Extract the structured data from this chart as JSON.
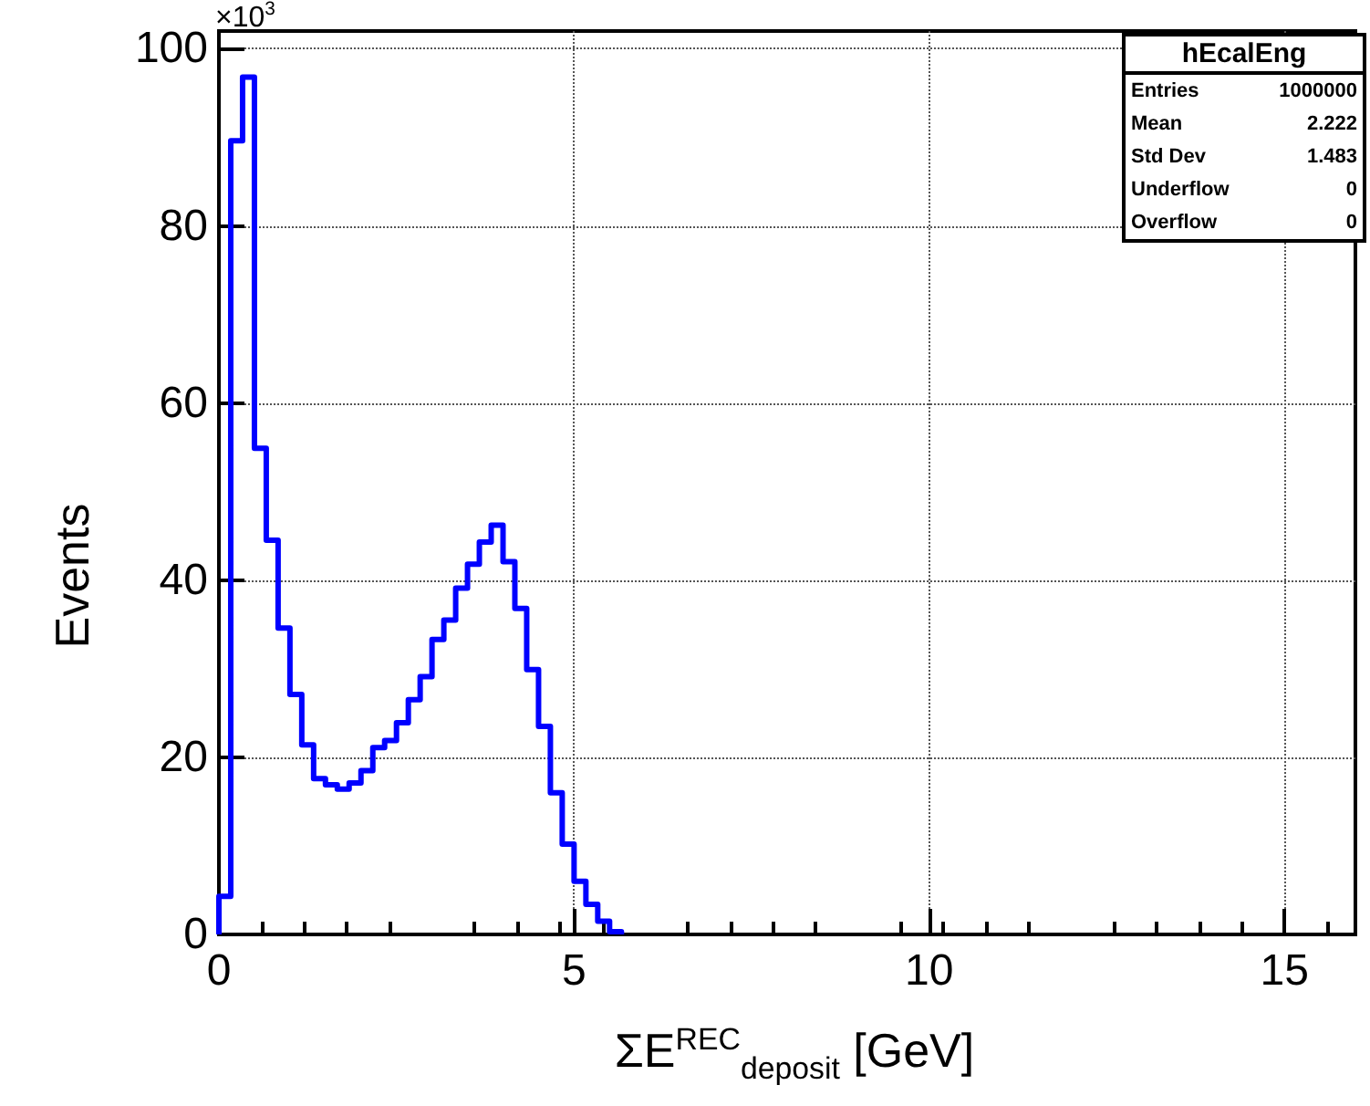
{
  "chart_data": {
    "type": "histogram",
    "xlabel": "ΣE$^{REC}$$_{deposit}$ [GeV]",
    "ylabel": "Events",
    "annotations": [
      "×10$^{3}$",
      "hEcalEng",
      "Entries 1000000",
      "Mean 2.222",
      "Std Dev 1.483",
      "Underflow 0",
      "Overflow 0"
    ],
    "bins": [
      0,
      0.1667,
      0.3333,
      0.5,
      0.6667,
      0.8333,
      1,
      1.1667,
      1.3333,
      1.5,
      1.6667,
      1.8333,
      2,
      2.1667,
      2.3333,
      2.5,
      2.6667,
      2.8333,
      3,
      3.1667,
      3.3333,
      3.5,
      3.6667,
      3.8333,
      4,
      4.1667,
      4.3333,
      4.5,
      4.6667,
      4.8333,
      5,
      5.1667,
      5.3333,
      5.5,
      5.6667
    ],
    "values": [
      4.3,
      89.6,
      96.8,
      54.9,
      44.5,
      34.6,
      27.1,
      21.4,
      17.6,
      16.9,
      16.4,
      17.1,
      18.5,
      21.1,
      21.9,
      23.9,
      26.5,
      29.1,
      33.3,
      35.5,
      39.1,
      41.8,
      44.3,
      46.2,
      42.1,
      36.8,
      29.9,
      23.5,
      16.0,
      10.2,
      6.0,
      3.4,
      1.5,
      0.3
    ],
    "color": "#0000ff",
    "xlim": [
      0,
      16
    ],
    "xticks": [
      0,
      5,
      10,
      15
    ],
    "ylim": [
      0,
      102
    ],
    "yticks": [
      0,
      20,
      40,
      60,
      80,
      100
    ],
    "grid": true
  }
}
